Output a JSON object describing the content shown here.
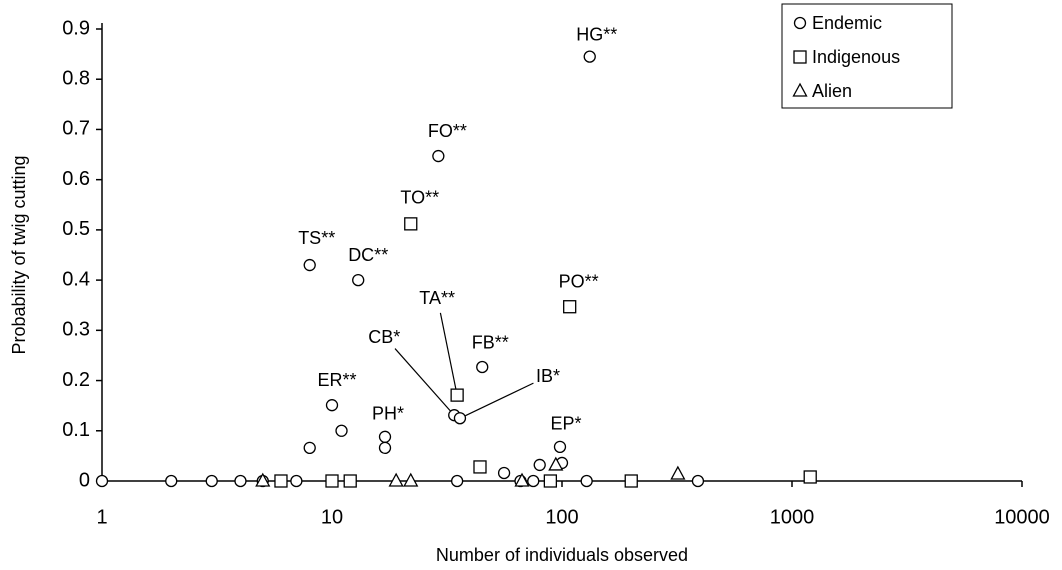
{
  "chart_data": {
    "type": "scatter",
    "x_label": "Number of individuals observed",
    "y_label": "Probability of twig cutting",
    "xscale": "log",
    "xlim": [
      1,
      10000
    ],
    "xticks": [
      1,
      10,
      100,
      1000,
      10000
    ],
    "ylim": [
      0,
      0.9
    ],
    "yticks": [
      0,
      0.1,
      0.2,
      0.3,
      0.4,
      0.5,
      0.6,
      0.7,
      0.8,
      0.9
    ],
    "grid": false,
    "legend": "upper right",
    "series": [
      {
        "name": "Endemic",
        "marker": "circle",
        "color": "#000000",
        "x": [
          1,
          2,
          3,
          4,
          5,
          7,
          8,
          8,
          10,
          11,
          13,
          17,
          17,
          29,
          34,
          36,
          35,
          45,
          56,
          66,
          75,
          80,
          98,
          100,
          128,
          132,
          390
        ],
        "values": [
          0,
          0,
          0,
          0,
          0,
          0,
          0.066,
          0.43,
          0.151,
          0.1,
          0.4,
          0.088,
          0.066,
          0.647,
          0.131,
          0.125,
          0,
          0.227,
          0.016,
          0,
          0,
          0.032,
          0.068,
          0.036,
          0,
          0.845,
          0
        ],
        "labels": [
          null,
          null,
          null,
          null,
          null,
          null,
          null,
          "TS**",
          "ER**",
          null,
          "DC**",
          "PH*",
          null,
          "FO**",
          "CB*",
          "IB*",
          null,
          "FB**",
          null,
          null,
          null,
          null,
          "EP*",
          null,
          null,
          "HG**",
          null
        ]
      },
      {
        "name": "Indigenous",
        "marker": "square",
        "color": "#000000",
        "x": [
          6,
          10,
          12,
          22,
          35,
          44,
          89,
          108,
          200,
          1200
        ],
        "values": [
          0,
          0,
          0,
          0.512,
          0.171,
          0.028,
          0,
          0.347,
          0,
          0.008
        ],
        "labels": [
          null,
          null,
          null,
          "TO**",
          "TA**",
          null,
          null,
          "PO**",
          null,
          null
        ]
      },
      {
        "name": "Alien",
        "marker": "triangle",
        "color": "#000000",
        "x": [
          5,
          19,
          22,
          67,
          94,
          319
        ],
        "values": [
          0,
          0,
          0,
          0,
          0.032,
          0.014
        ],
        "labels": [
          null,
          null,
          null,
          null,
          null,
          null
        ]
      }
    ]
  }
}
